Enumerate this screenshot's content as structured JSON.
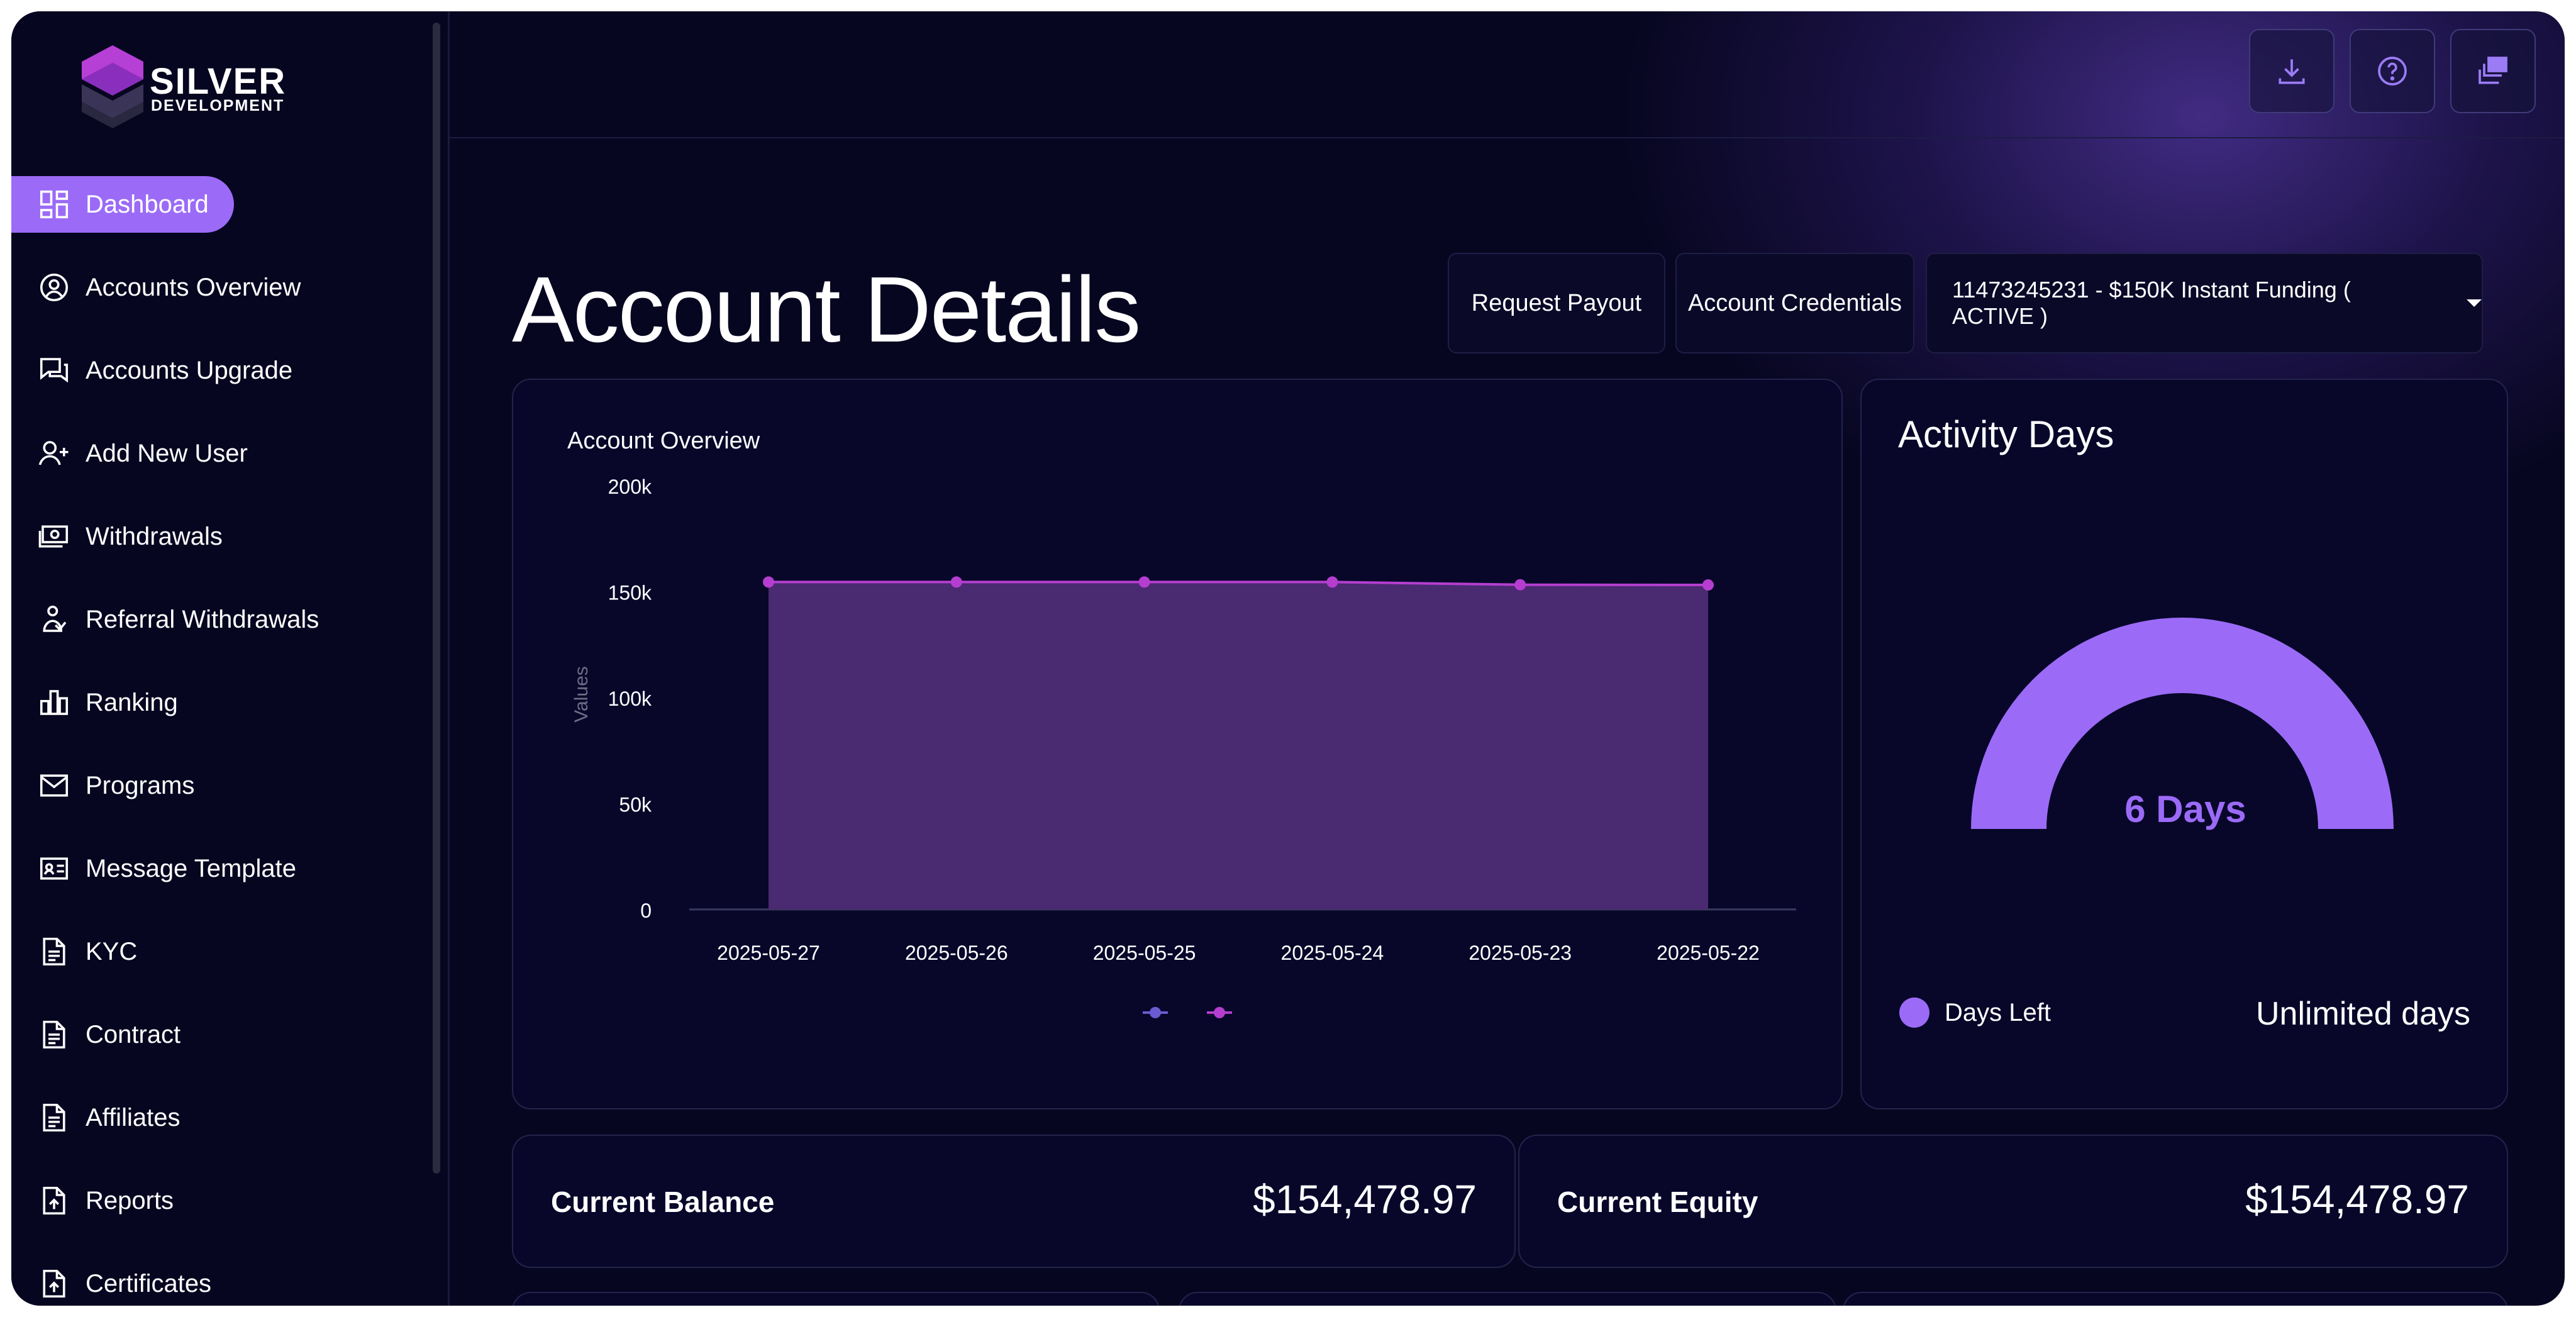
{
  "brand": {
    "line1": "SILVER",
    "line2": "DEVELOPMENT"
  },
  "sidebar": {
    "items": [
      {
        "label": "Dashboard",
        "icon": "dashboard-icon",
        "active": true
      },
      {
        "label": "Accounts Overview",
        "icon": "user-circle-icon"
      },
      {
        "label": "Accounts Upgrade",
        "icon": "chat-bubbles-icon"
      },
      {
        "label": "Add New User",
        "icon": "user-plus-icon"
      },
      {
        "label": "Withdrawals",
        "icon": "cash-icon"
      },
      {
        "label": "Referral Withdrawals",
        "icon": "referral-icon"
      },
      {
        "label": "Ranking",
        "icon": "bar-chart-icon"
      },
      {
        "label": "Programs",
        "icon": "mail-icon"
      },
      {
        "label": "Message Template",
        "icon": "id-card-icon"
      },
      {
        "label": "KYC",
        "icon": "document-icon"
      },
      {
        "label": "Contract",
        "icon": "document-icon"
      },
      {
        "label": "Affiliates",
        "icon": "document-icon"
      },
      {
        "label": "Reports",
        "icon": "file-upload-icon"
      },
      {
        "label": "Certificates",
        "icon": "file-upload-icon"
      }
    ]
  },
  "topbar": {
    "buttons": [
      "download-icon",
      "help-icon",
      "windows-icon"
    ]
  },
  "header": {
    "title": "Account Details",
    "request_payout": "Request Payout",
    "account_credentials": "Account Credentials",
    "account_select": "11473245231 - $150K Instant Funding ( ACTIVE )"
  },
  "overview": {
    "title": "Account Overview"
  },
  "chart_data": {
    "type": "area",
    "ylabel": "Values",
    "ylim": [
      0,
      200000
    ],
    "yticks": [
      "200k",
      "150k",
      "100k",
      "50k",
      "0"
    ],
    "categories": [
      "2025-05-27",
      "2025-05-26",
      "2025-05-25",
      "2025-05-24",
      "2025-05-23",
      "2025-05-22"
    ],
    "series": [
      {
        "values": [
          154479,
          154479,
          154479,
          154479,
          153200,
          153100
        ],
        "color": "#b53ed0"
      }
    ],
    "legend_colors": [
      "#6a5bd0",
      "#b53ed0"
    ],
    "fill_color": "#4a2a70",
    "grid": false
  },
  "activity": {
    "title": "Activity Days",
    "center_text": "6 Days",
    "legend_label": "Days Left",
    "legend_value": "Unlimited days",
    "accent": "#9b6bf7"
  },
  "stats": {
    "balance_label": "Current Balance",
    "balance_value": "$154,478.97",
    "equity_label": "Current Equity",
    "equity_value": "$154,478.97"
  }
}
